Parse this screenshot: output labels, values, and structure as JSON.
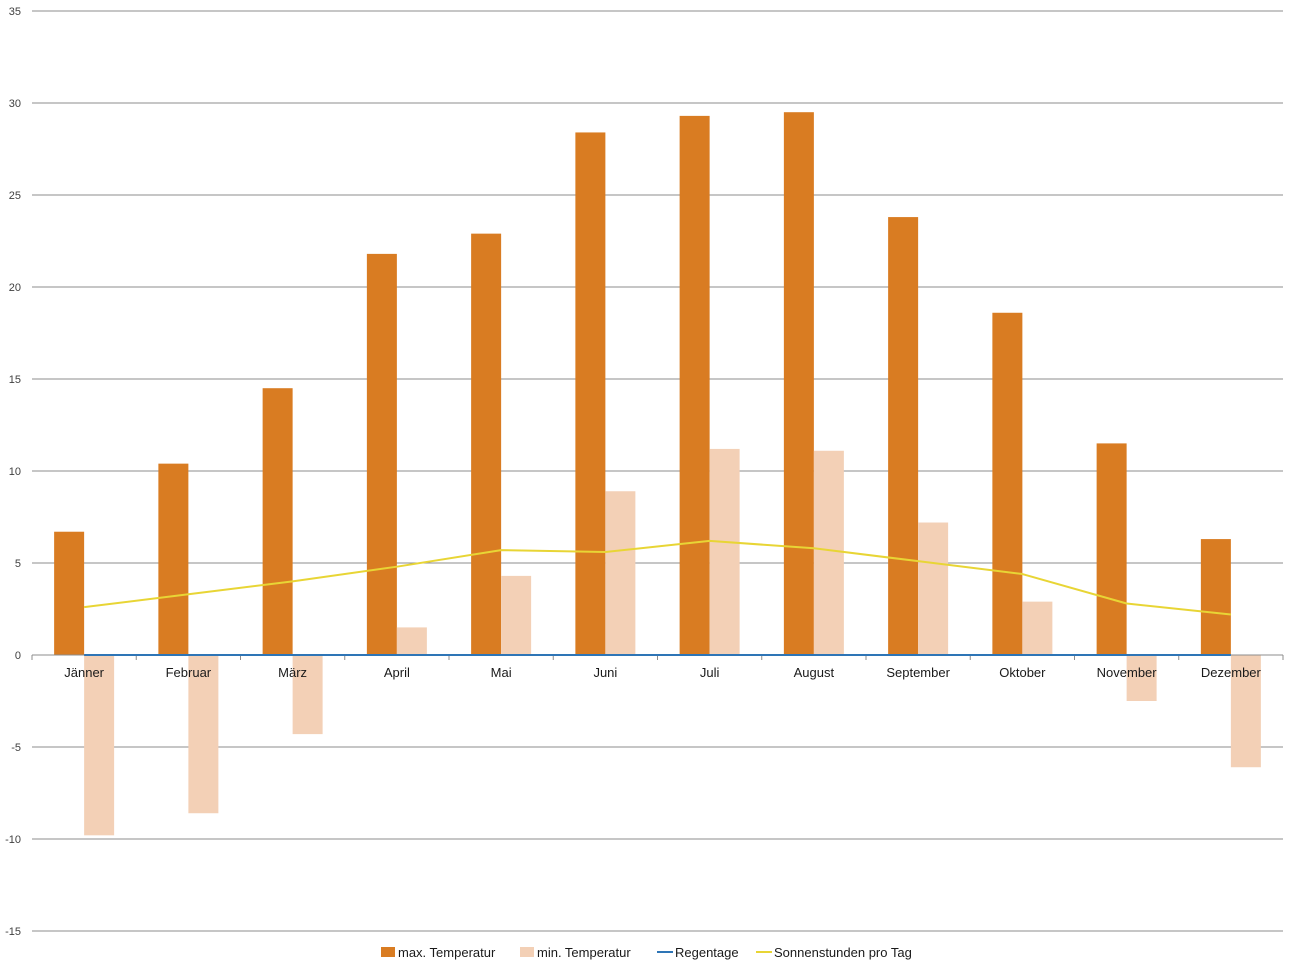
{
  "chart_data": {
    "type": "bar",
    "categories": [
      "Jänner",
      "Februar",
      "März",
      "April",
      "Mai",
      "Juni",
      "Juli",
      "August",
      "September",
      "Oktober",
      "November",
      "Dezember"
    ],
    "series": [
      {
        "name": "max. Temperatur",
        "kind": "bar",
        "color": "#d97c22",
        "values": [
          6.7,
          10.4,
          14.5,
          21.8,
          22.9,
          28.4,
          29.3,
          29.5,
          23.8,
          18.6,
          11.5,
          6.3
        ]
      },
      {
        "name": "min. Temperatur",
        "kind": "bar",
        "color": "#f3d0b6",
        "values": [
          -9.8,
          -8.6,
          -4.3,
          1.5,
          4.3,
          8.9,
          11.2,
          11.1,
          7.2,
          2.9,
          -2.5,
          -6.1
        ]
      },
      {
        "name": "Regentage",
        "kind": "line",
        "color": "#2e75b6",
        "values": [
          0,
          0,
          0,
          0,
          0,
          0,
          0,
          0,
          0,
          0,
          0,
          0
        ]
      },
      {
        "name": "Sonnenstunden pro Tag",
        "kind": "line",
        "color": "#e8d535",
        "values": [
          2.6,
          3.3,
          4.0,
          4.8,
          5.7,
          5.6,
          6.2,
          5.8,
          5.1,
          4.4,
          2.8,
          2.2
        ]
      }
    ],
    "ylim": [
      -15,
      35
    ],
    "yticks": [
      35,
      30,
      25,
      20,
      15,
      10,
      5,
      0,
      -5,
      -10,
      -15
    ],
    "grid": true,
    "legend_position": "bottom",
    "title": "",
    "xlabel": "",
    "ylabel": ""
  }
}
